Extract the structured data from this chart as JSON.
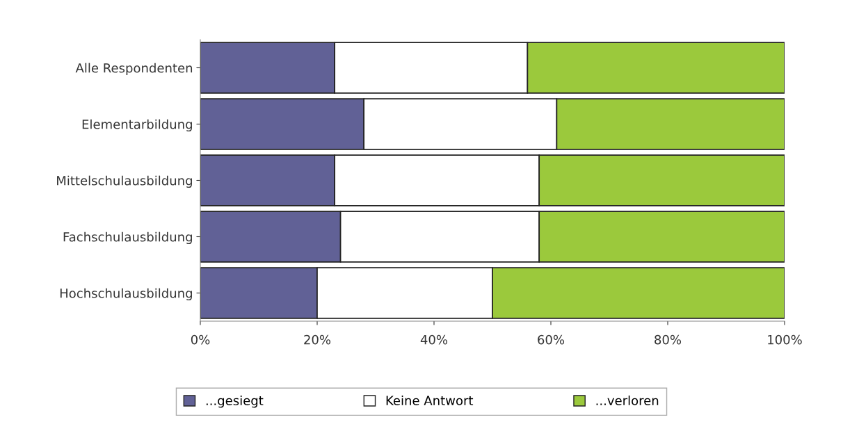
{
  "chart_data": {
    "type": "bar",
    "orientation": "horizontal",
    "stacked": true,
    "legend": "bottom",
    "grid": false,
    "categories": [
      "Alle Respondenten",
      "Elementarbildung",
      "Mittelschulausbildung",
      "Fachschulausbildung",
      "Hochschulausbildung"
    ],
    "series": [
      {
        "name": "...gesiegt",
        "color": "#616196",
        "values": [
          23,
          28,
          23,
          24,
          20
        ]
      },
      {
        "name": "Keine Antwort",
        "color": "#ffffff",
        "values": [
          33,
          33,
          35,
          34,
          30
        ]
      },
      {
        "name": "...verloren",
        "color": "#9bc93c",
        "values": [
          44,
          39,
          42,
          42,
          50
        ]
      }
    ],
    "xlim": [
      0,
      100
    ],
    "xticks": [
      {
        "value": 0,
        "label": "0%"
      },
      {
        "value": 20,
        "label": "20%"
      },
      {
        "value": 40,
        "label": "40%"
      },
      {
        "value": 60,
        "label": "60%"
      },
      {
        "value": 80,
        "label": "80%"
      },
      {
        "value": 100,
        "label": "100%"
      }
    ]
  }
}
